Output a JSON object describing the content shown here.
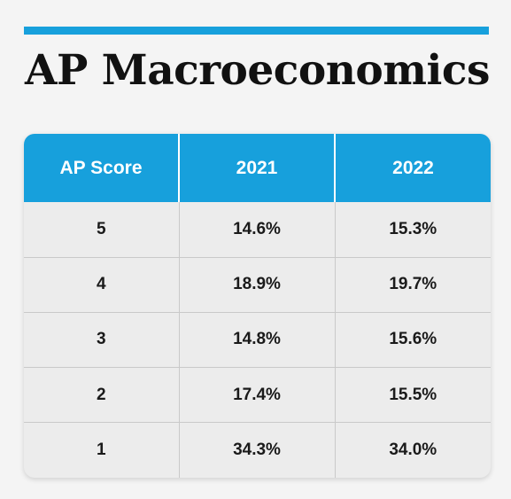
{
  "title": "AP Macroeconomics",
  "colors": {
    "accent": "#17a0dc",
    "background": "#f4f4f4",
    "table_body": "#ececec"
  },
  "table": {
    "headers": [
      "AP Score",
      "2021",
      "2022"
    ],
    "rows": [
      {
        "score": "5",
        "y2021": "14.6%",
        "y2022": "15.3%"
      },
      {
        "score": "4",
        "y2021": "18.9%",
        "y2022": "19.7%"
      },
      {
        "score": "3",
        "y2021": "14.8%",
        "y2022": "15.6%"
      },
      {
        "score": "2",
        "y2021": "17.4%",
        "y2022": "15.5%"
      },
      {
        "score": "1",
        "y2021": "34.3%",
        "y2022": "34.0%"
      }
    ]
  }
}
